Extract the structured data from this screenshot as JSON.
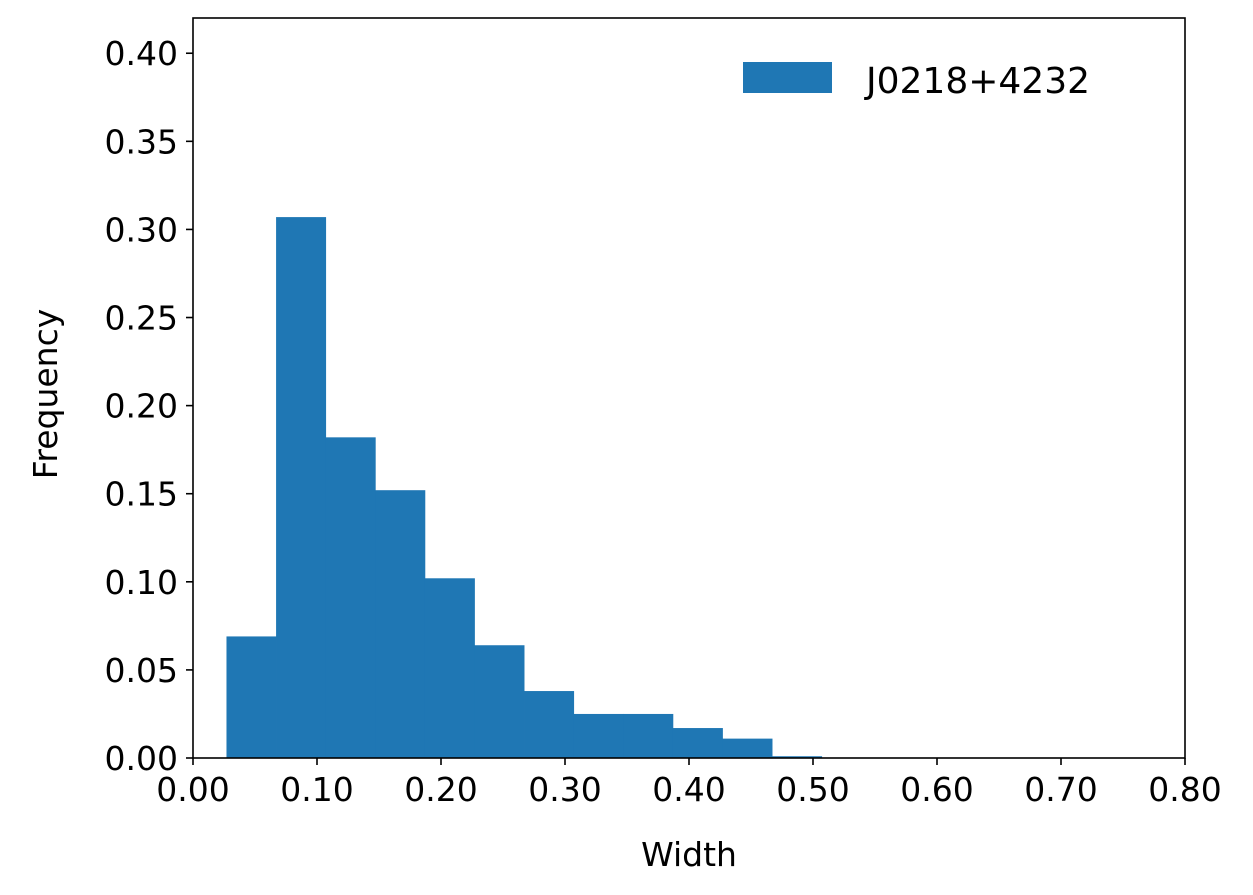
{
  "chart_data": {
    "type": "bar",
    "subtype": "histogram",
    "title": "",
    "xlabel": "Width",
    "ylabel": "Frequency",
    "xlim": [
      0.0,
      0.8
    ],
    "ylim": [
      0.0,
      0.42
    ],
    "grid": false,
    "legend_position": "top-right",
    "xticks": [
      0.0,
      0.1,
      0.2,
      0.3,
      0.4,
      0.5,
      0.6,
      0.7,
      0.8
    ],
    "xtick_labels": [
      "0.00",
      "0.10",
      "0.20",
      "0.30",
      "0.40",
      "0.50",
      "0.60",
      "0.70",
      "0.80"
    ],
    "yticks": [
      0.0,
      0.05,
      0.1,
      0.15,
      0.2,
      0.25,
      0.3,
      0.35,
      0.4
    ],
    "ytick_labels": [
      "0.00",
      "0.05",
      "0.10",
      "0.15",
      "0.20",
      "0.25",
      "0.30",
      "0.35",
      "0.40"
    ],
    "series": [
      {
        "name": "J0218+4232",
        "color": "#1f77b4",
        "bin_edges": [
          0.027,
          0.067,
          0.107,
          0.147,
          0.187,
          0.227,
          0.267,
          0.307,
          0.347,
          0.387,
          0.427,
          0.467,
          0.507
        ],
        "values": [
          0.069,
          0.307,
          0.182,
          0.152,
          0.102,
          0.064,
          0.038,
          0.025,
          0.025,
          0.017,
          0.011,
          0.001
        ]
      }
    ]
  }
}
